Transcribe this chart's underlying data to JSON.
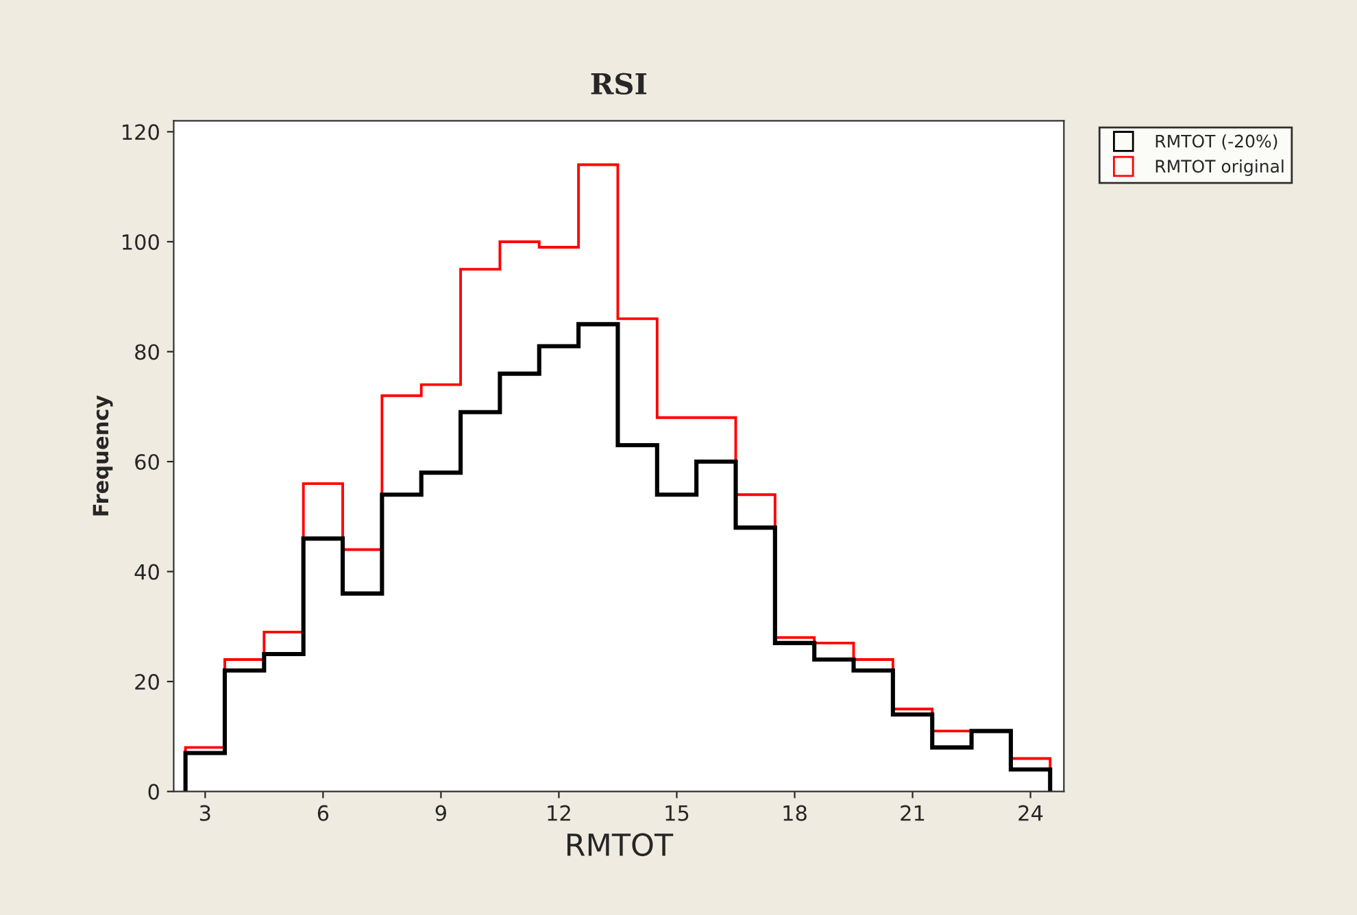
{
  "chart_data": {
    "type": "histogram",
    "title": "RSI",
    "xlabel": "RMTOT",
    "ylabel": "Frequency",
    "bins": [
      2.5,
      3.5,
      4.5,
      5.5,
      6.5,
      7.5,
      8.5,
      9.5,
      10.5,
      11.5,
      12.5,
      13.5,
      14.5,
      15.5,
      16.5,
      17.5,
      18.5,
      19.5,
      20.5,
      21.5,
      22.5,
      23.5,
      24.5
    ],
    "series": [
      {
        "name": "RMTOT (-20%)",
        "color": "#000000",
        "values": [
          7,
          22,
          25,
          46,
          36,
          54,
          58,
          69,
          76,
          81,
          85,
          63,
          54,
          60,
          48,
          27,
          24,
          22,
          14,
          8,
          11,
          4
        ]
      },
      {
        "name": "RMTOT original",
        "color": "#ff0000",
        "values": [
          8,
          24,
          29,
          56,
          44,
          72,
          74,
          95,
          100,
          99,
          114,
          86,
          68,
          68,
          54,
          28,
          27,
          24,
          15,
          11,
          11,
          6
        ]
      }
    ],
    "xlim": [
      2.2,
      24.85
    ],
    "ylim": [
      0,
      122
    ],
    "xticks": [
      3,
      6,
      9,
      12,
      15,
      18,
      21,
      24
    ],
    "yticks": [
      0,
      20,
      40,
      60,
      80,
      100,
      120
    ],
    "grid": false,
    "legend": "top right"
  }
}
